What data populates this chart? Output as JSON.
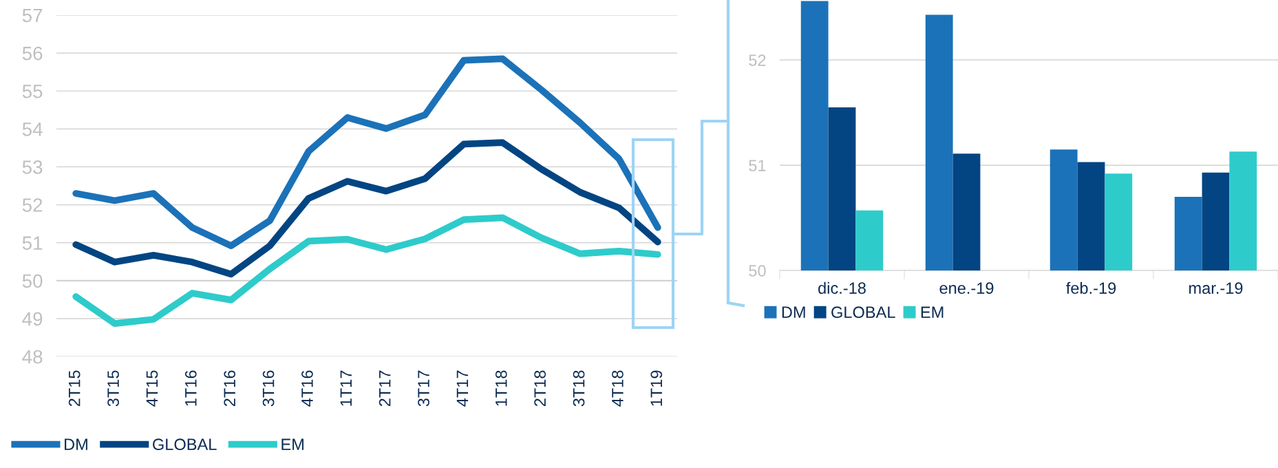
{
  "chart_data": [
    {
      "type": "line",
      "categories": [
        "2T15",
        "3T15",
        "4T15",
        "1T16",
        "2T16",
        "3T16",
        "4T16",
        "1T17",
        "2T17",
        "3T17",
        "4T17",
        "1T18",
        "2T18",
        "3T18",
        "4T18",
        "1T19"
      ],
      "series": [
        {
          "name": "DM",
          "color": "#1b72b8",
          "values": [
            52.3,
            52.11,
            52.3,
            51.4,
            50.92,
            51.58,
            53.41,
            54.3,
            54.01,
            54.37,
            55.81,
            55.85,
            55.03,
            54.16,
            53.21,
            51.4
          ]
        },
        {
          "name": "GLOBAL",
          "color": "#024582",
          "values": [
            50.95,
            50.49,
            50.67,
            50.49,
            50.17,
            50.92,
            52.17,
            52.62,
            52.36,
            52.69,
            53.6,
            53.64,
            52.94,
            52.33,
            51.92,
            51.02
          ]
        },
        {
          "name": "EM",
          "color": "#2ecbcb",
          "values": [
            49.58,
            48.87,
            48.98,
            49.67,
            49.49,
            50.31,
            51.04,
            51.09,
            50.82,
            51.1,
            51.61,
            51.66,
            51.13,
            50.71,
            50.78,
            50.69
          ]
        }
      ],
      "ylim": [
        48,
        57
      ],
      "yticks": [
        48,
        49,
        50,
        51,
        52,
        53,
        54,
        55,
        56,
        57
      ],
      "grid": "y",
      "ref_lines": [
        {
          "axis": "y",
          "value": 50,
          "color": "#d0d0d0"
        }
      ],
      "legend": "bottom left",
      "line_style": "solid",
      "marker": "none"
    },
    {
      "type": "bar",
      "categories": [
        "dic.-18",
        "ene.-19",
        "feb.-19",
        "mar.-19"
      ],
      "series": [
        {
          "name": "DM",
          "color": "#1b72b8",
          "values": [
            52.56,
            52.43,
            51.15,
            50.7
          ]
        },
        {
          "name": "GLOBAL",
          "color": "#024582",
          "values": [
            51.55,
            51.11,
            51.03,
            50.93
          ]
        },
        {
          "name": "EM",
          "color": "#2ecbcb",
          "values": [
            50.57,
            50.0,
            50.92,
            51.13
          ]
        }
      ],
      "ylim": [
        50,
        52.57
      ],
      "yticks": [
        50,
        51,
        52
      ],
      "grid": "y",
      "legend": "bottom left"
    }
  ]
}
